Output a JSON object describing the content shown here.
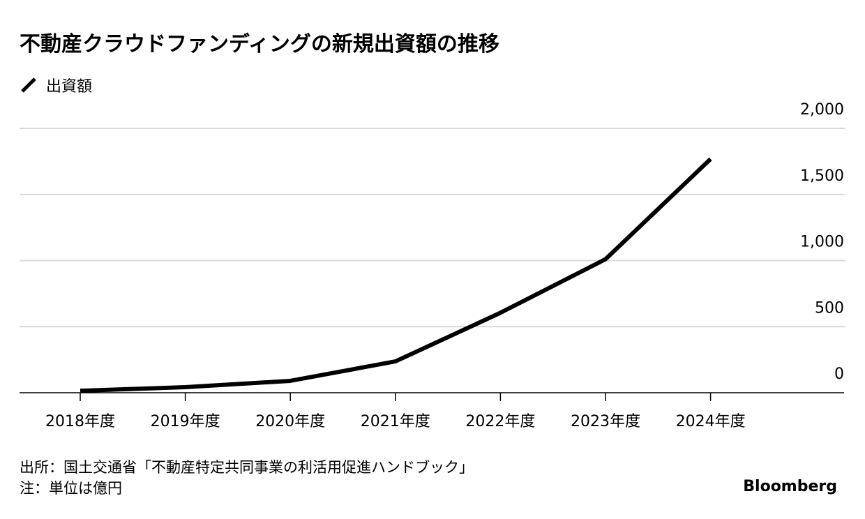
{
  "chart_data": {
    "type": "line",
    "title": "不動産クラウドファンディングの新規出資額の推移",
    "categories": [
      "2018年度",
      "2019年度",
      "2020年度",
      "2021年度",
      "2022年度",
      "2023年度",
      "2024年度"
    ],
    "series": [
      {
        "name": "出資額",
        "color": "#000000",
        "values": [
          15,
          42,
          90,
          237,
          605,
          1010,
          1768
        ]
      }
    ],
    "ylim": [
      0,
      2000
    ],
    "yticks": [
      0,
      500,
      {
        "value": 1000,
        "label": "1,000"
      },
      {
        "value": 1500,
        "label": "1,500"
      },
      {
        "value": 2000,
        "label": "2,000"
      }
    ],
    "grid": true,
    "source": "出所：国土交通省「不動産特定共同事業の利活用促進ハンドブック」",
    "note": "注：単位は億円",
    "credit": "Bloomberg"
  }
}
